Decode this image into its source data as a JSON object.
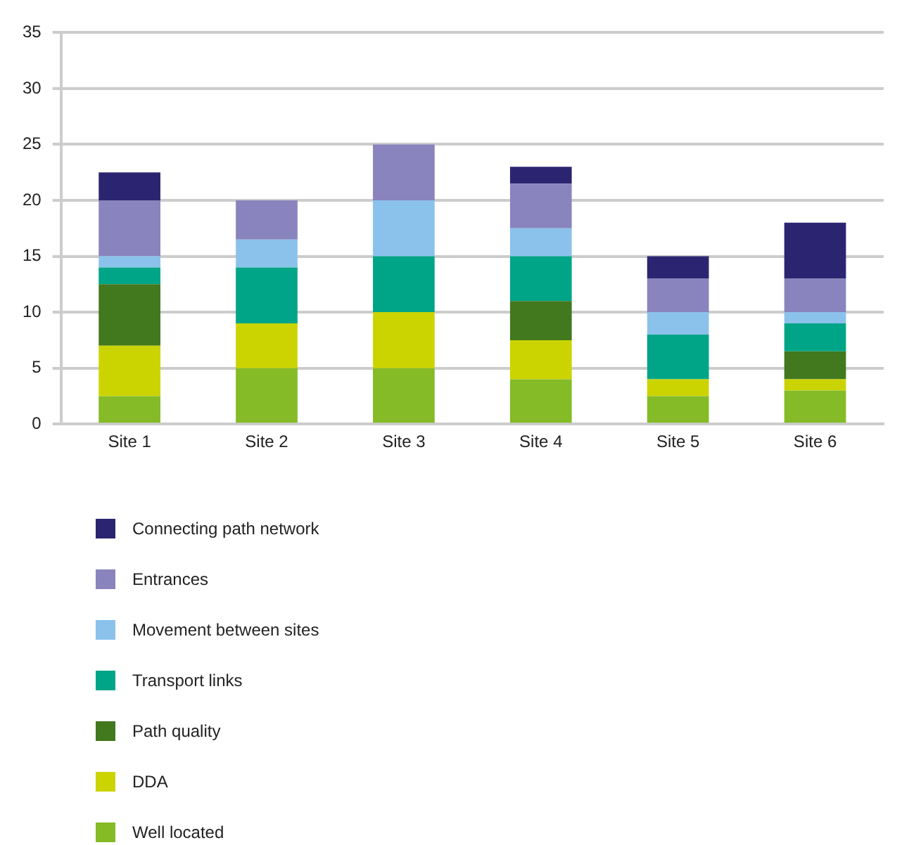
{
  "chart_data": {
    "type": "bar",
    "stacked": true,
    "categories": [
      "Site 1",
      "Site 2",
      "Site 3",
      "Site 4",
      "Site 5",
      "Site 6"
    ],
    "series": [
      {
        "name": "Well located",
        "color": "#84bb26",
        "values": [
          2.5,
          5,
          5,
          4,
          2.5,
          3
        ]
      },
      {
        "name": "DDA",
        "color": "#cbd400",
        "values": [
          4.5,
          4,
          5,
          3.5,
          1.5,
          1
        ]
      },
      {
        "name": "Path quality",
        "color": "#42781e",
        "values": [
          5.5,
          0,
          0,
          3.5,
          0,
          2.5
        ]
      },
      {
        "name": "Transport links",
        "color": "#00a587",
        "values": [
          1.5,
          5,
          5,
          4,
          4,
          2.5
        ]
      },
      {
        "name": "Movement between sites",
        "color": "#8bc2eb",
        "values": [
          1,
          2.5,
          5,
          2.5,
          2,
          1
        ]
      },
      {
        "name": "Entrances",
        "color": "#8984bd",
        "values": [
          5,
          3.5,
          5,
          4,
          3,
          3
        ]
      },
      {
        "name": "Connecting path network",
        "color": "#2b2571",
        "values": [
          2.5,
          0,
          0,
          1.5,
          2,
          5
        ]
      }
    ],
    "ylim": [
      0,
      35
    ],
    "yticks": [
      0,
      5,
      10,
      15,
      20,
      25,
      30,
      35
    ],
    "grid": "y",
    "legend": "bottom"
  }
}
